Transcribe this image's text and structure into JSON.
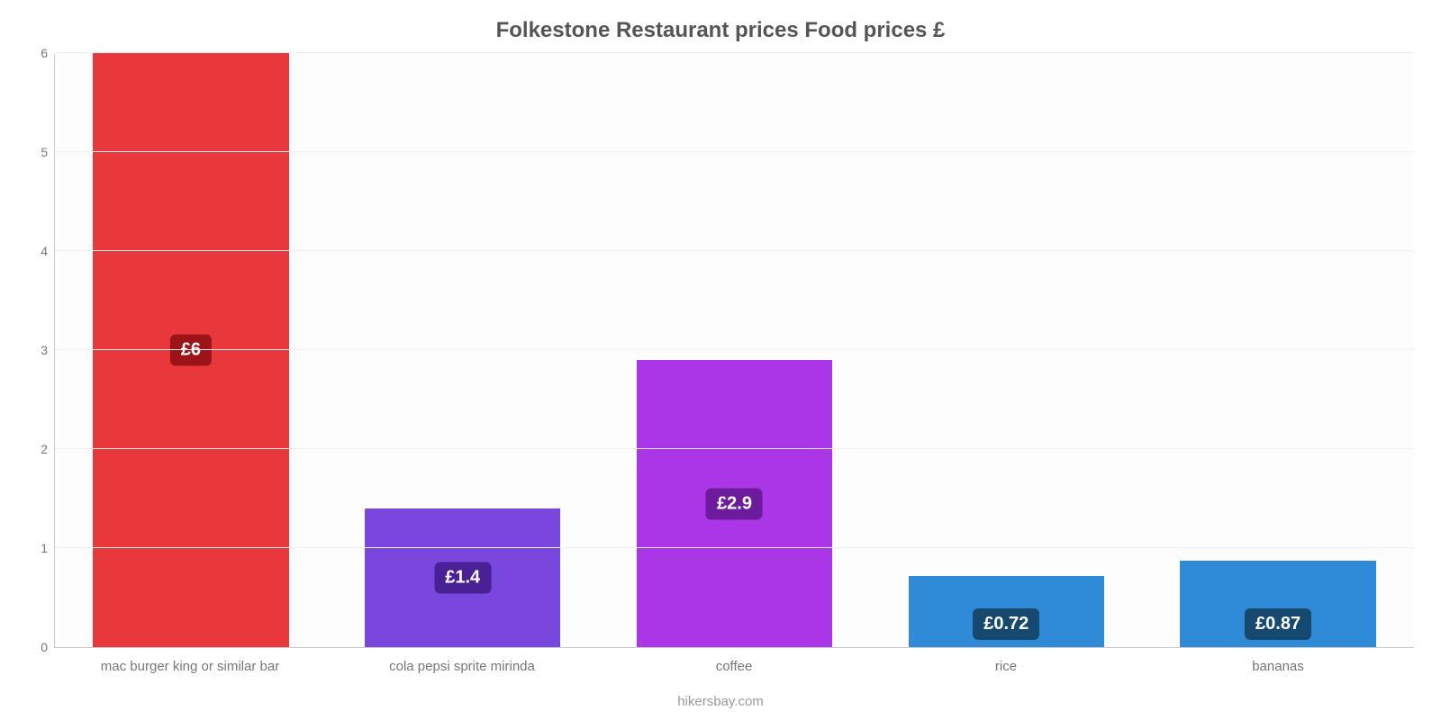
{
  "chart": {
    "type": "bar",
    "title": "Folkestone Restaurant prices Food prices £",
    "title_fontsize": 24,
    "title_color": "#555558",
    "footer": "hikersbay.com",
    "footer_color": "#999999",
    "background_color": "#ffffff",
    "plot_background_color": "#fdfdfe",
    "grid_color": "#f0f0f0",
    "axis_color": "#c9c9c9",
    "tick_label_color": "#777777",
    "tick_fontsize": 14,
    "xlabel_fontsize": 15,
    "bar_width": 0.72,
    "ylim": [
      0,
      6
    ],
    "yticks": [
      0,
      1,
      2,
      3,
      4,
      5,
      6
    ],
    "value_label_fontsize": 20,
    "value_label_color": "#ffffff",
    "value_label_radius": 6,
    "categories": [
      "mac burger king or similar bar",
      "cola pepsi sprite mirinda",
      "coffee",
      "rice",
      "bananas"
    ],
    "values": [
      6,
      1.4,
      2.9,
      0.72,
      0.87
    ],
    "value_labels": [
      "£6",
      "£1.4",
      "£2.9",
      "£0.72",
      "£0.87"
    ],
    "bar_colors": [
      "#e8383b",
      "#7a47de",
      "#aa36e8",
      "#2f8bd8",
      "#2f8bd8"
    ],
    "badge_colors": [
      "#9c1417",
      "#4a2096",
      "#6c1b9c",
      "#15496f",
      "#15496f"
    ]
  }
}
